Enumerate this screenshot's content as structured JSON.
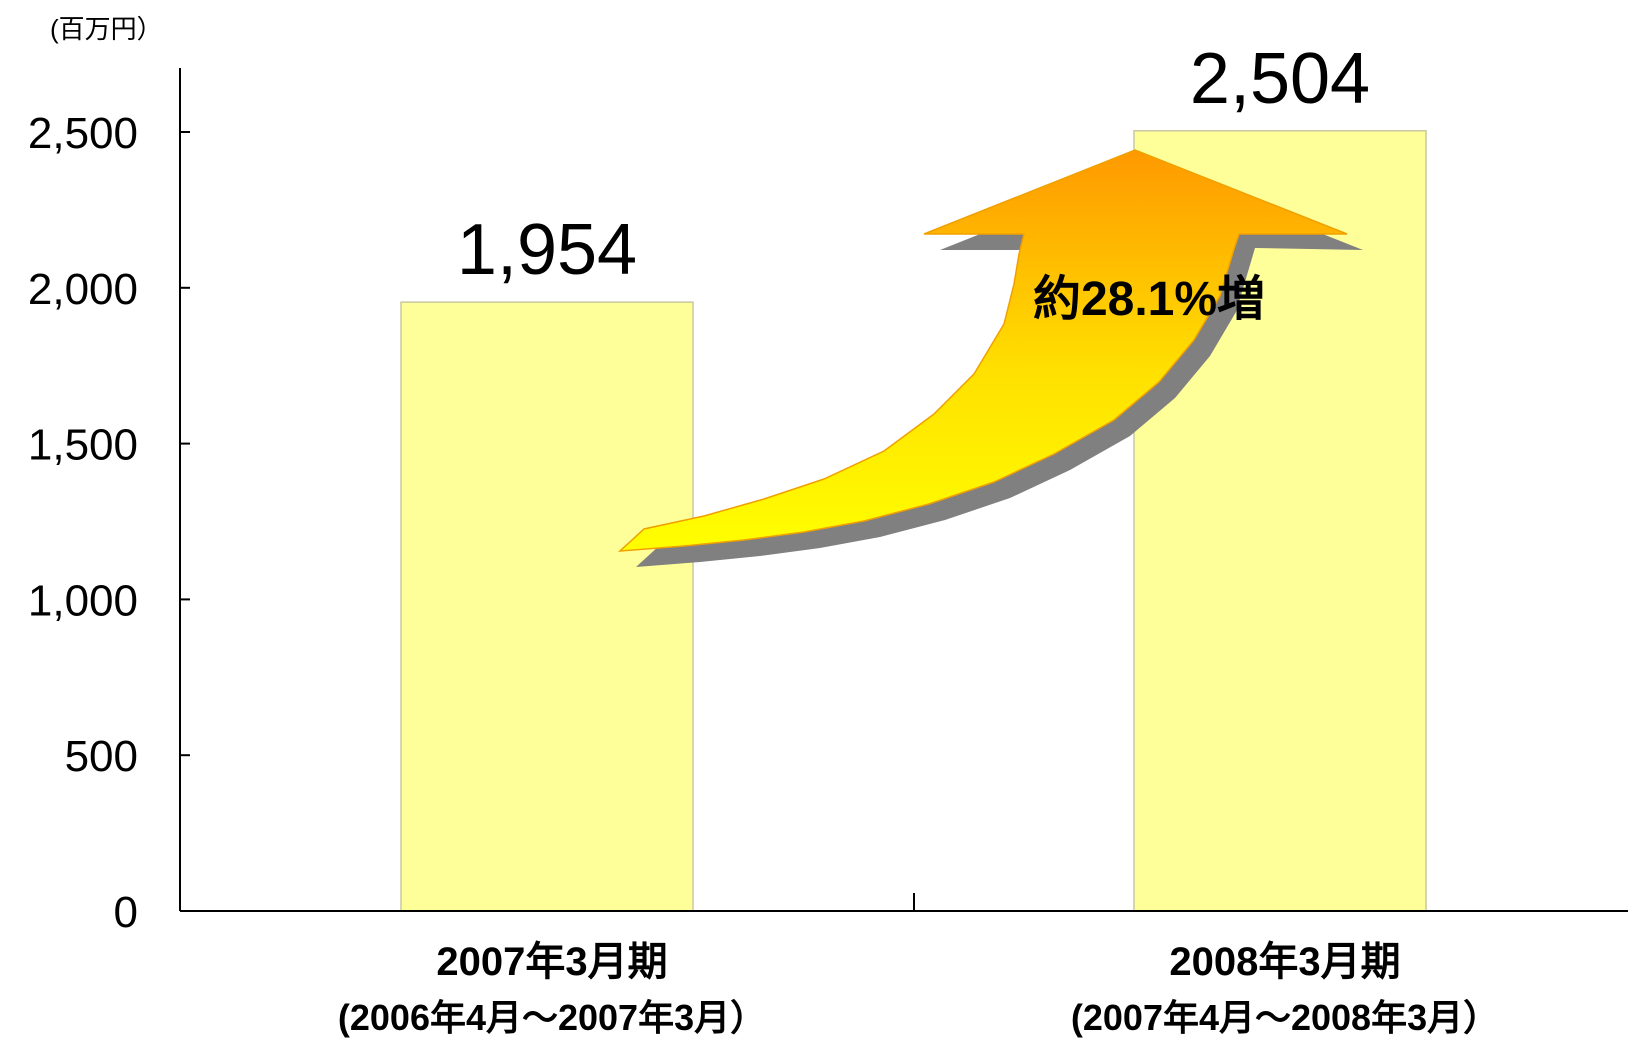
{
  "chart_data": {
    "type": "bar",
    "unit_label": "(百万円）",
    "categories": [
      "2007年3月期",
      "2008年3月期"
    ],
    "category_sublabels": [
      "(2006年4月～2007年3月）",
      "(2007年4月～2008年3月）"
    ],
    "values": [
      1954,
      2504
    ],
    "data_labels": [
      "1,954",
      "2,504"
    ],
    "ylim": [
      0,
      2500
    ],
    "yticks": [
      0,
      500,
      1000,
      1500,
      2000,
      2500
    ],
    "ytick_labels": [
      "0",
      "500",
      "1,000",
      "1,500",
      "2,000",
      "2,500"
    ],
    "annotation": "約28.1%増",
    "grid": false,
    "bar_color": "#ffff99",
    "bar_edge_color": "#c8c8a0",
    "arrow_colors": [
      "#ffff00",
      "#ff9900"
    ]
  }
}
